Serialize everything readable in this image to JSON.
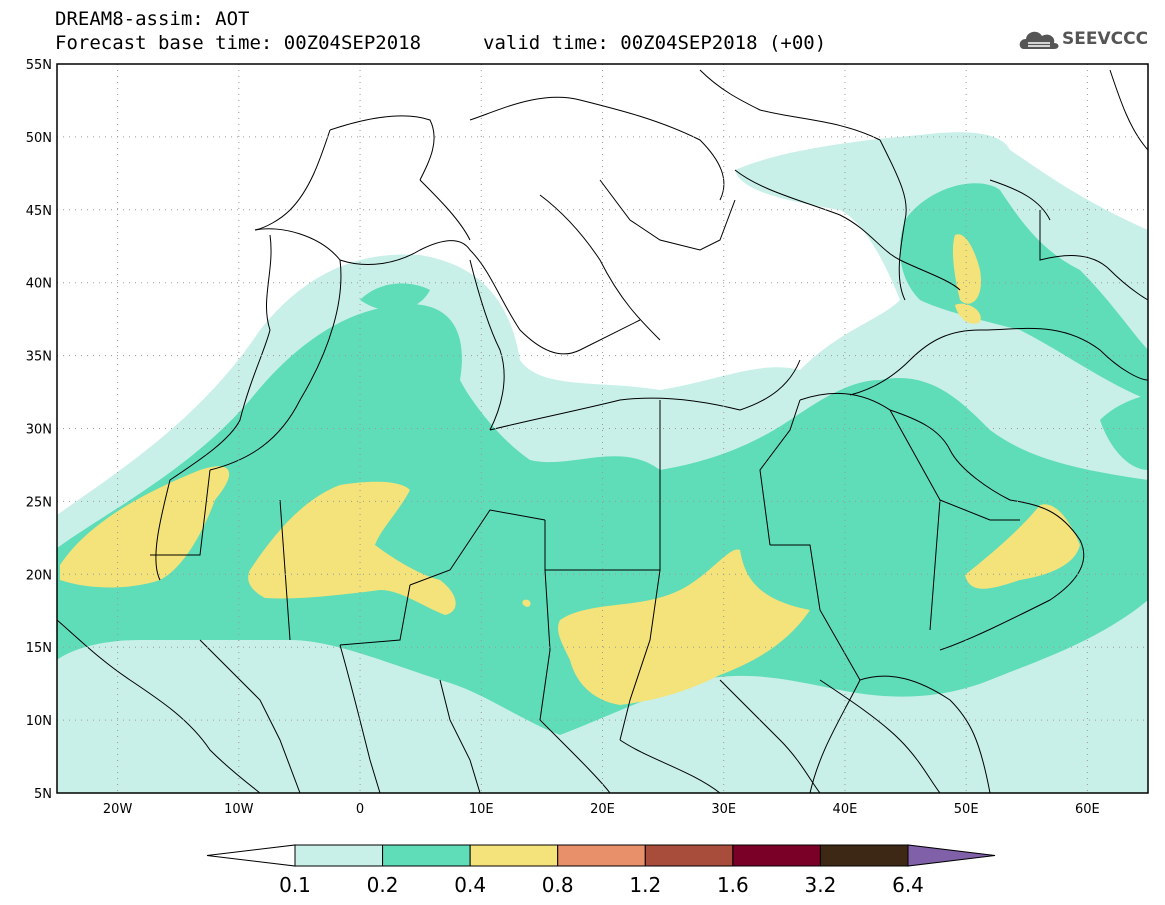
{
  "header": {
    "title": "DREAM8-assim: AOT",
    "base_time": "Forecast base time: 00Z04SEP2018",
    "valid_time": "valid time: 00Z04SEP2018 (+00)",
    "logo_text": "SEEVCCC"
  },
  "map": {
    "lon_range": [
      -25,
      65
    ],
    "lat_range": [
      5,
      55
    ],
    "lat_labels": [
      "55N",
      "50N",
      "45N",
      "40N",
      "35N",
      "30N",
      "25N",
      "20N",
      "15N",
      "10N",
      "5N"
    ],
    "lon_labels": [
      "20W",
      "10W",
      "0",
      "10E",
      "20E",
      "30E",
      "40E",
      "50E",
      "60E"
    ],
    "colors": {
      "land": "#ffffff",
      "border": "#000000",
      "aot_0_1": "#c8f0e8",
      "aot_0_2": "#5fdcb8",
      "aot_0_4": "#f4e27a"
    }
  },
  "colorbar": {
    "bins": [
      {
        "color": "#c8f0e8"
      },
      {
        "color": "#5fdcb8"
      },
      {
        "color": "#f4e27a"
      },
      {
        "color": "#e8906a"
      },
      {
        "color": "#a84c3c"
      },
      {
        "color": "#7a0028"
      },
      {
        "color": "#3c2814"
      }
    ],
    "under_color": "#ffffff",
    "over_color": "#8060a8",
    "labels": [
      "0.1",
      "0.2",
      "0.4",
      "0.8",
      "1.2",
      "1.6",
      "3.2",
      "6.4"
    ]
  }
}
